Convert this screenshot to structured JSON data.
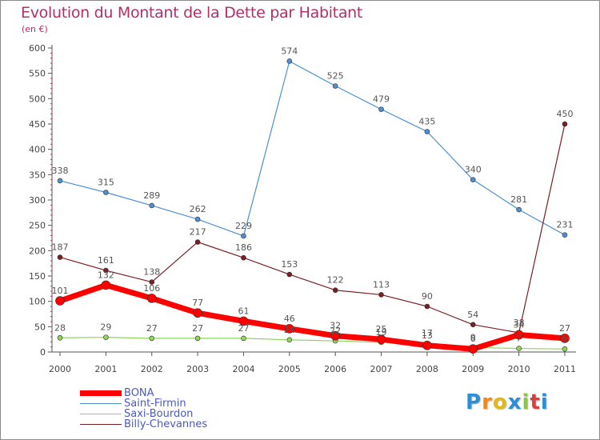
{
  "header": {
    "title": "Evolution du Montant de la Dette par Habitant",
    "unit": "(en €)"
  },
  "logo": {
    "text": "Proxiti",
    "letters": [
      "P",
      "r",
      "o",
      "x",
      "i",
      "t",
      "i"
    ],
    "colors": [
      "#2a8fd6",
      "#f08a1c",
      "#e0b818",
      "#2a8fd6",
      "#8cc63f",
      "#e03c3c",
      "#2a8fd6"
    ]
  },
  "chart_data": {
    "type": "line",
    "title": "Evolution du Montant de la Dette par Habitant",
    "ylabel": "(en €)",
    "xlabel": "",
    "ylim": [
      0,
      600
    ],
    "yticks": [
      0,
      50,
      100,
      150,
      200,
      250,
      300,
      350,
      400,
      450,
      500,
      550,
      600
    ],
    "categories": [
      "2000",
      "2001",
      "2002",
      "2003",
      "2004",
      "2005",
      "2006",
      "2007",
      "2008",
      "2009",
      "2010",
      "2011"
    ],
    "grid": false,
    "legend_position": "bottom-left",
    "series": [
      {
        "name": "Saint-Firmin",
        "color": "#4f8fd0",
        "width": 1.2,
        "values": [
          338,
          315,
          289,
          262,
          229,
          574,
          525,
          479,
          435,
          340,
          281,
          231
        ],
        "labels": true
      },
      {
        "name": "Billy-Chevannes",
        "color": "#7a1f24",
        "width": 1.2,
        "values": [
          187,
          161,
          138,
          217,
          186,
          153,
          122,
          113,
          90,
          54,
          38,
          450
        ],
        "labels": true
      },
      {
        "name": "Saxi-Bourdon",
        "color": "#8fd35a",
        "width": 1.2,
        "values": [
          28,
          29,
          27,
          27,
          27,
          24,
          22,
          19,
          17,
          9,
          7,
          6
        ],
        "labels": false
      },
      {
        "name": "BONA",
        "color": "#ff0000",
        "width": 7,
        "values": [
          101,
          132,
          106,
          77,
          61,
          46,
          32,
          25,
          13,
          6,
          34,
          27
        ],
        "labels": true
      }
    ],
    "label_annotations": [
      {
        "x": "2000",
        "y": 28,
        "text": "28"
      },
      {
        "x": "2001",
        "y": 29,
        "text": "29"
      },
      {
        "x": "2002",
        "y": 27,
        "text": "27"
      },
      {
        "x": "2003",
        "y": 27,
        "text": "27"
      },
      {
        "x": "2004",
        "y": 27,
        "text": "27"
      },
      {
        "x": "2005",
        "y": 24,
        "text": "24"
      },
      {
        "x": "2006",
        "y": 22,
        "text": "22"
      },
      {
        "x": "2007",
        "y": 19,
        "text": "19"
      },
      {
        "x": "2008",
        "y": 17,
        "text": "17"
      },
      {
        "x": "2009",
        "y": 9,
        "text": "9"
      },
      {
        "x": "2010",
        "y": 7,
        "text": "7"
      },
      {
        "x": "2011",
        "y": 6,
        "text": "6"
      }
    ]
  },
  "legend": {
    "items": [
      {
        "label": "BONA",
        "color": "#ff0000",
        "thickness": 7
      },
      {
        "label": "Saint-Firmin",
        "color": "#4f8fd0",
        "thickness": 1
      },
      {
        "label": "Saxi-Bourdon",
        "color": "#8fd35a",
        "thickness": 1
      },
      {
        "label": "Billy-Chevannes",
        "color": "#7a1f24",
        "thickness": 1
      }
    ]
  }
}
